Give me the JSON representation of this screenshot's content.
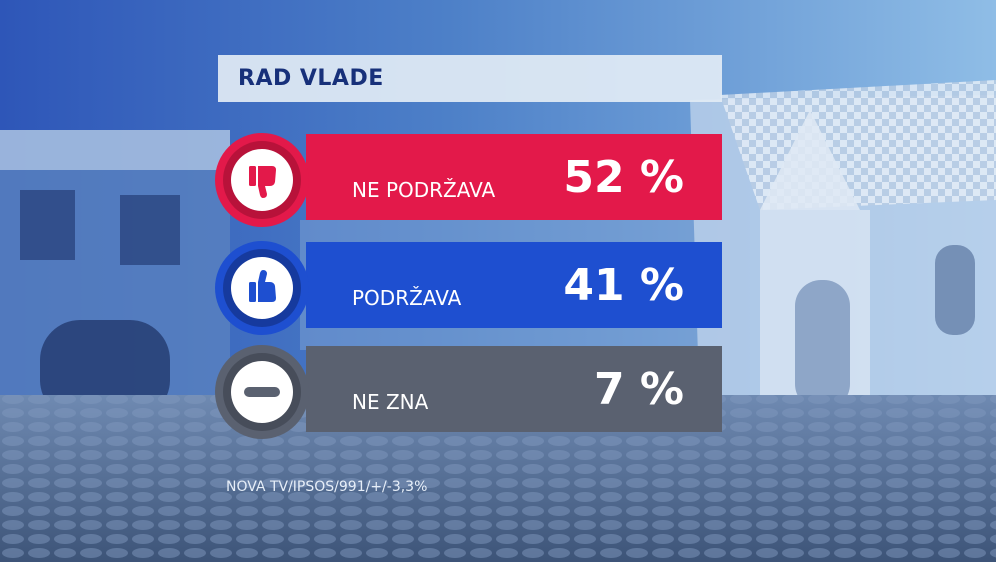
{
  "title": "RAD VLADE",
  "source": "NOVA TV/IPSOS/991/+/-3,3%",
  "colors": {
    "red": "#e3194a",
    "blue": "#1e4fd0",
    "gray": "#5a6170"
  },
  "chart_data": {
    "type": "bar",
    "title": "RAD VLADE",
    "categories": [
      "NE PODRŽAVA",
      "PODRŽAVA",
      "NE ZNA"
    ],
    "values": [
      52,
      41,
      7
    ],
    "value_labels": [
      "52 %",
      "41 %",
      "7 %"
    ],
    "icons": [
      "thumbs-down-icon",
      "thumbs-up-icon",
      "minus-icon"
    ]
  }
}
